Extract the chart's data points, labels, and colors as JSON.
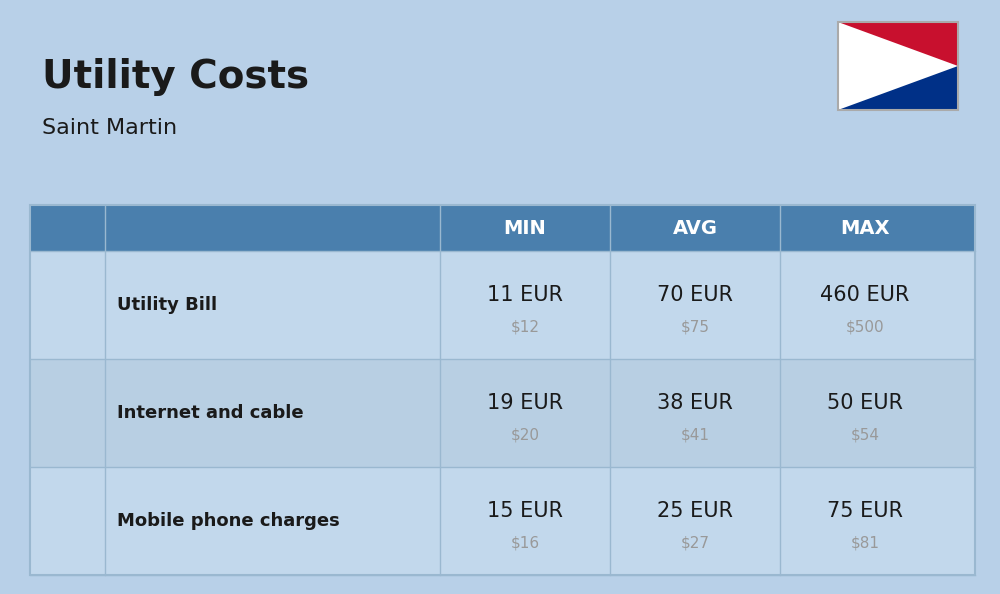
{
  "title": "Utility Costs",
  "subtitle": "Saint Martin",
  "background_color": "#b8d0e8",
  "header_bg_color": "#4a7fad",
  "header_text_color": "#ffffff",
  "row_bg_even": "#c2d8ec",
  "row_bg_odd": "#b8cfe3",
  "cell_text_color": "#1a1a1a",
  "usd_text_color": "#999999",
  "separator_color": "#9ab8d0",
  "headers": [
    "MIN",
    "AVG",
    "MAX"
  ],
  "rows": [
    {
      "label": "Utility Bill",
      "min_eur": "11 EUR",
      "min_usd": "$12",
      "avg_eur": "70 EUR",
      "avg_usd": "$75",
      "max_eur": "460 EUR",
      "max_usd": "$500"
    },
    {
      "label": "Internet and cable",
      "min_eur": "19 EUR",
      "min_usd": "$20",
      "avg_eur": "38 EUR",
      "avg_usd": "$41",
      "max_eur": "50 EUR",
      "max_usd": "$54"
    },
    {
      "label": "Mobile phone charges",
      "min_eur": "15 EUR",
      "min_usd": "$16",
      "avg_eur": "25 EUR",
      "avg_usd": "$27",
      "max_eur": "75 EUR",
      "max_usd": "$81"
    }
  ],
  "flag_red": "#C8102E",
  "flag_blue": "#003087",
  "flag_white": "#FFFFFF",
  "title_fontsize": 28,
  "subtitle_fontsize": 16,
  "header_fontsize": 14,
  "label_fontsize": 13,
  "eur_fontsize": 15,
  "usd_fontsize": 11
}
